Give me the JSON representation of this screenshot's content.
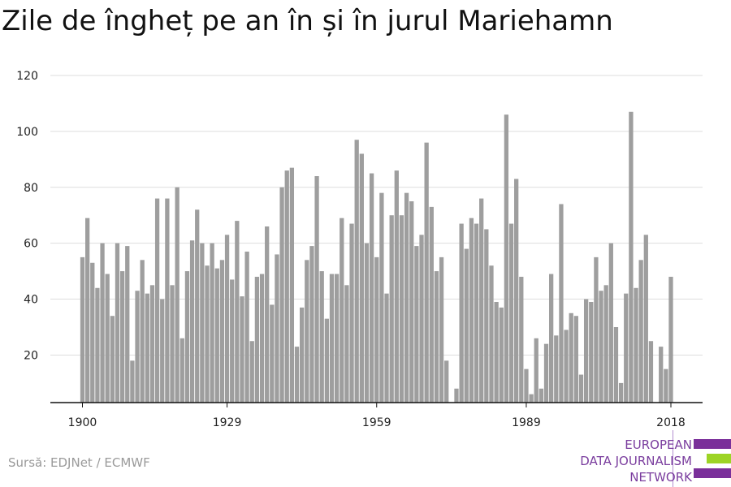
{
  "title": "Zile de îngheț pe an în și în jurul Mariehamn",
  "source": "Sursă: EDJNet / ECMWF",
  "logo": {
    "lines": [
      "EUROPEAN",
      "DATA JOURNALISM",
      "NETWORK"
    ],
    "colors": [
      "#7a2f9a",
      "#9dd425",
      "#7a2f9a"
    ]
  },
  "colors": {
    "bar": "#9e9e9e",
    "grid": "#dddddd",
    "axis": "#111111"
  },
  "chart_data": {
    "type": "bar",
    "title": "Zile de îngheț pe an în și în jurul Mariehamn",
    "xlabel": "",
    "ylabel": "",
    "x_ticks": [
      "1900",
      "1929",
      "1959",
      "1989",
      "2018"
    ],
    "y_ticks": [
      20,
      40,
      60,
      80,
      100,
      120
    ],
    "ylim": [
      3,
      120
    ],
    "grid": true,
    "x": [
      1900,
      1901,
      1902,
      1903,
      1904,
      1905,
      1906,
      1907,
      1908,
      1909,
      1910,
      1911,
      1912,
      1913,
      1914,
      1915,
      1916,
      1917,
      1918,
      1919,
      1920,
      1921,
      1922,
      1923,
      1924,
      1925,
      1926,
      1927,
      1928,
      1929,
      1930,
      1931,
      1932,
      1933,
      1934,
      1935,
      1936,
      1937,
      1938,
      1939,
      1940,
      1941,
      1942,
      1943,
      1944,
      1945,
      1946,
      1947,
      1948,
      1949,
      1950,
      1951,
      1952,
      1953,
      1954,
      1955,
      1956,
      1957,
      1958,
      1959,
      1960,
      1961,
      1962,
      1963,
      1964,
      1965,
      1966,
      1967,
      1968,
      1969,
      1970,
      1971,
      1972,
      1973,
      1974,
      1975,
      1976,
      1977,
      1978,
      1979,
      1980,
      1981,
      1982,
      1983,
      1984,
      1985,
      1986,
      1987,
      1988,
      1989,
      1990,
      1991,
      1992,
      1993,
      1994,
      1995,
      1996,
      1997,
      1998,
      1999,
      2000,
      2001,
      2002,
      2003,
      2004,
      2005,
      2006,
      2007,
      2008,
      2009,
      2010,
      2011,
      2012,
      2013,
      2014,
      2015,
      2016,
      2017,
      2018
    ],
    "values": [
      55,
      69,
      53,
      44,
      60,
      49,
      34,
      60,
      50,
      59,
      18,
      43,
      54,
      42,
      45,
      76,
      40,
      76,
      45,
      80,
      26,
      50,
      61,
      72,
      60,
      52,
      60,
      51,
      54,
      63,
      47,
      68,
      41,
      57,
      25,
      48,
      49,
      66,
      38,
      56,
      80,
      86,
      87,
      23,
      37,
      54,
      59,
      84,
      50,
      33,
      49,
      49,
      69,
      45,
      67,
      97,
      92,
      60,
      85,
      55,
      78,
      42,
      70,
      86,
      70,
      78,
      75,
      59,
      63,
      96,
      73,
      50,
      55,
      18,
      null,
      8,
      67,
      58,
      69,
      67,
      76,
      65,
      52,
      39,
      37,
      106,
      67,
      83,
      48,
      15,
      6,
      26,
      8,
      24,
      49,
      27,
      74,
      29,
      35,
      34,
      13,
      40,
      39,
      55,
      43,
      45,
      60,
      30,
      10,
      42,
      107,
      44,
      54,
      63,
      25,
      null,
      23,
      15,
      48
    ]
  }
}
